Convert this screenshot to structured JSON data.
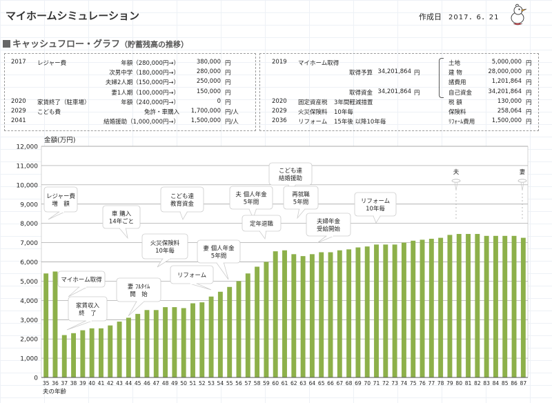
{
  "header": {
    "title": "マイホームシミュレーション",
    "date_label": "作成日",
    "date_value": "2017．6．21"
  },
  "section": {
    "title": "キャッシュフロー・グラフ",
    "subtitle": "（貯蓄残高の推移）"
  },
  "left_panel": {
    "rows": [
      {
        "year": "2017",
        "item": "レジャー費",
        "desc": "年額（280,000円→）",
        "amount": "380,000",
        "unit": "円"
      },
      {
        "year": "",
        "item": "",
        "desc": "次男中学（180,000円→）",
        "amount": "280,000",
        "unit": "円"
      },
      {
        "year": "",
        "item": "",
        "desc": "夫婦2人期（150,000円→）",
        "amount": "250,000",
        "unit": "円"
      },
      {
        "year": "",
        "item": "",
        "desc": "妻1人期（100,000円→）",
        "amount": "150,000",
        "unit": "円"
      },
      {
        "year": "2020",
        "item": "家賃終了（駐車場）",
        "desc": "年額（240,000円→）",
        "amount": "0",
        "unit": "円"
      },
      {
        "year": "2029",
        "item": "こども費",
        "desc": "免許・車購入",
        "amount": "1,700,000",
        "unit": "円/人"
      },
      {
        "year": "2041",
        "item": "",
        "desc": "結婚援助（1,000,000円→）",
        "amount": "1,500,000",
        "unit": "円/人"
      }
    ]
  },
  "right_panel": {
    "rows": [
      {
        "year": "2019",
        "item": "マイホーム取得",
        "desc": "",
        "amount": "",
        "unit": ""
      },
      {
        "year": "",
        "item": "",
        "desc": "取得予算",
        "amount": "34,201,864",
        "unit": "円"
      },
      {
        "year": "",
        "item": "",
        "desc": "",
        "amount": "",
        "unit": ""
      },
      {
        "year": "",
        "item": "",
        "desc": "取得資金",
        "amount": "34,201,864",
        "unit": "円"
      },
      {
        "year": "2020",
        "item": "固定資産税",
        "desc": "3年間軽減措置",
        "amount": "",
        "unit": ""
      },
      {
        "year": "2029",
        "item": "火災保険料",
        "desc": "10年毎",
        "amount": "",
        "unit": ""
      },
      {
        "year": "2036",
        "item": "リフォーム",
        "desc": "15年後 以降10年毎",
        "amount": "",
        "unit": ""
      }
    ],
    "breakdown": [
      {
        "label": "土地",
        "amount": "5,000,000",
        "unit": "円"
      },
      {
        "label": "建 物",
        "amount": "28,000,000",
        "unit": "円"
      },
      {
        "label": "諸費用",
        "amount": "1,201,864",
        "unit": "円"
      },
      {
        "label": "自己資金",
        "amount": "34,201,864",
        "unit": "円"
      },
      {
        "label": "税 額",
        "amount": "130,000",
        "unit": "円"
      },
      {
        "label": "保険料",
        "amount": "258,064",
        "unit": "円"
      },
      {
        "label": "ﾘﾌｫｰﾑ費用",
        "amount": "1,500,000",
        "unit": "円"
      }
    ]
  },
  "chart_data": {
    "type": "bar",
    "ylabel": "金額(万円)",
    "xlabel": "夫の年齢",
    "ylim": [
      0,
      12000
    ],
    "yticks": [
      "0",
      "1,000",
      "2,000",
      "3,000",
      "4,000",
      "5,000",
      "6,000",
      "7,000",
      "8,000",
      "9,000",
      "10,000",
      "11,000",
      "12,000"
    ],
    "grid": true,
    "bar_color": "#8db04a",
    "categories": [
      "35",
      "36",
      "37",
      "38",
      "39",
      "40",
      "41",
      "42",
      "43",
      "44",
      "45",
      "46",
      "47",
      "48",
      "49",
      "50",
      "51",
      "52",
      "53",
      "54",
      "55",
      "56",
      "57",
      "58",
      "59",
      "60",
      "61",
      "62",
      "63",
      "64",
      "65",
      "66",
      "67",
      "68",
      "69",
      "70",
      "71",
      "72",
      "73",
      "74",
      "75",
      "76",
      "77",
      "78",
      "79",
      "80",
      "81",
      "82",
      "83",
      "84",
      "85",
      "86",
      "87"
    ],
    "values": [
      5400,
      5500,
      2200,
      2300,
      2450,
      2550,
      2550,
      2700,
      2900,
      3100,
      3300,
      3500,
      3500,
      3650,
      3650,
      3600,
      3850,
      3900,
      4200,
      4450,
      4700,
      5000,
      5400,
      5750,
      6000,
      6550,
      6600,
      6400,
      6300,
      6400,
      6500,
      6500,
      6600,
      6650,
      6750,
      6800,
      6900,
      6900,
      6900,
      7000,
      7100,
      7150,
      7200,
      7250,
      7400,
      7450,
      7450,
      7450,
      7350,
      7350,
      7350,
      7350,
      7250
    ],
    "annotations": [
      {
        "lines": [
          "レジャー費",
          "増　額"
        ],
        "at_age": "35"
      },
      {
        "lines": [
          "マイホーム取得"
        ],
        "at_age": "37"
      },
      {
        "lines": [
          "家賃収入",
          "終　了"
        ],
        "at_age": "37"
      },
      {
        "lines": [
          "車 購入",
          "14年ごと"
        ],
        "at_age": "43"
      },
      {
        "lines": [
          "妻 ﾌﾙﾀｲﾑ",
          "開　始"
        ],
        "at_age": "44"
      },
      {
        "lines": [
          "こども達",
          "教育資金"
        ],
        "at_age": "49"
      },
      {
        "lines": [
          "火災保険料",
          "10年毎"
        ],
        "at_age": "47"
      },
      {
        "lines": [
          "リフォーム"
        ],
        "at_age": "50"
      },
      {
        "lines": [
          "妻 個人年金",
          "5年間"
        ],
        "at_age": "54"
      },
      {
        "lines": [
          "夫 個人年金",
          "5年間"
        ],
        "at_age": "55"
      },
      {
        "lines": [
          "定年退職"
        ],
        "at_age": "60"
      },
      {
        "lines": [
          "こども達",
          "結婚援助"
        ],
        "at_age": "61"
      },
      {
        "lines": [
          "再就職",
          "5年間"
        ],
        "at_age": "61"
      },
      {
        "lines": [
          "夫婦年金",
          "受給開始"
        ],
        "at_age": "64"
      },
      {
        "lines": [
          "リフォーム",
          "10年毎"
        ],
        "at_age": "71"
      },
      {
        "lines": [
          "夫"
        ],
        "at_age": "80"
      },
      {
        "lines": [
          "妻"
        ],
        "at_age": "87"
      }
    ]
  }
}
